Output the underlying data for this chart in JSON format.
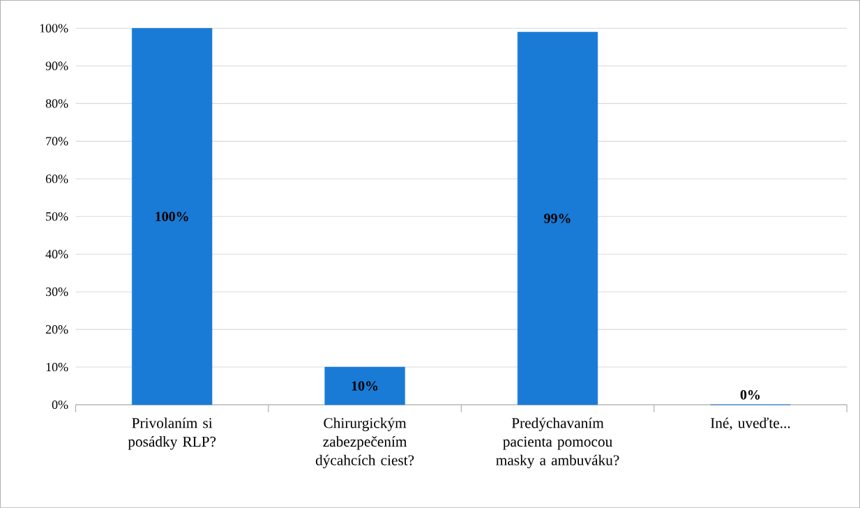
{
  "chart_data": {
    "type": "bar",
    "categories": [
      "Privolaním si posádky RLP?",
      "Chirurgickým zabezpečením dýcahcích ciest?",
      "Predýchavaním pacienta pomocou masky a ambuváku?",
      "Iné, uveďte..."
    ],
    "values": [
      100,
      10,
      99,
      0
    ],
    "value_labels": [
      "100%",
      "10%",
      "99%",
      "0%"
    ],
    "color": "#1a7bd6",
    "ylim": [
      0,
      100
    ],
    "yticks": [
      {
        "value": 0,
        "label": "0%"
      },
      {
        "value": 10,
        "label": "10%"
      },
      {
        "value": 20,
        "label": "20%"
      },
      {
        "value": 30,
        "label": "30%"
      },
      {
        "value": 40,
        "label": "40%"
      },
      {
        "value": 50,
        "label": "50%"
      },
      {
        "value": 60,
        "label": "60%"
      },
      {
        "value": 70,
        "label": "70%"
      },
      {
        "value": 80,
        "label": "80%"
      },
      {
        "value": 90,
        "label": "90%"
      },
      {
        "value": 100,
        "label": "100%"
      }
    ],
    "grid": "y"
  }
}
